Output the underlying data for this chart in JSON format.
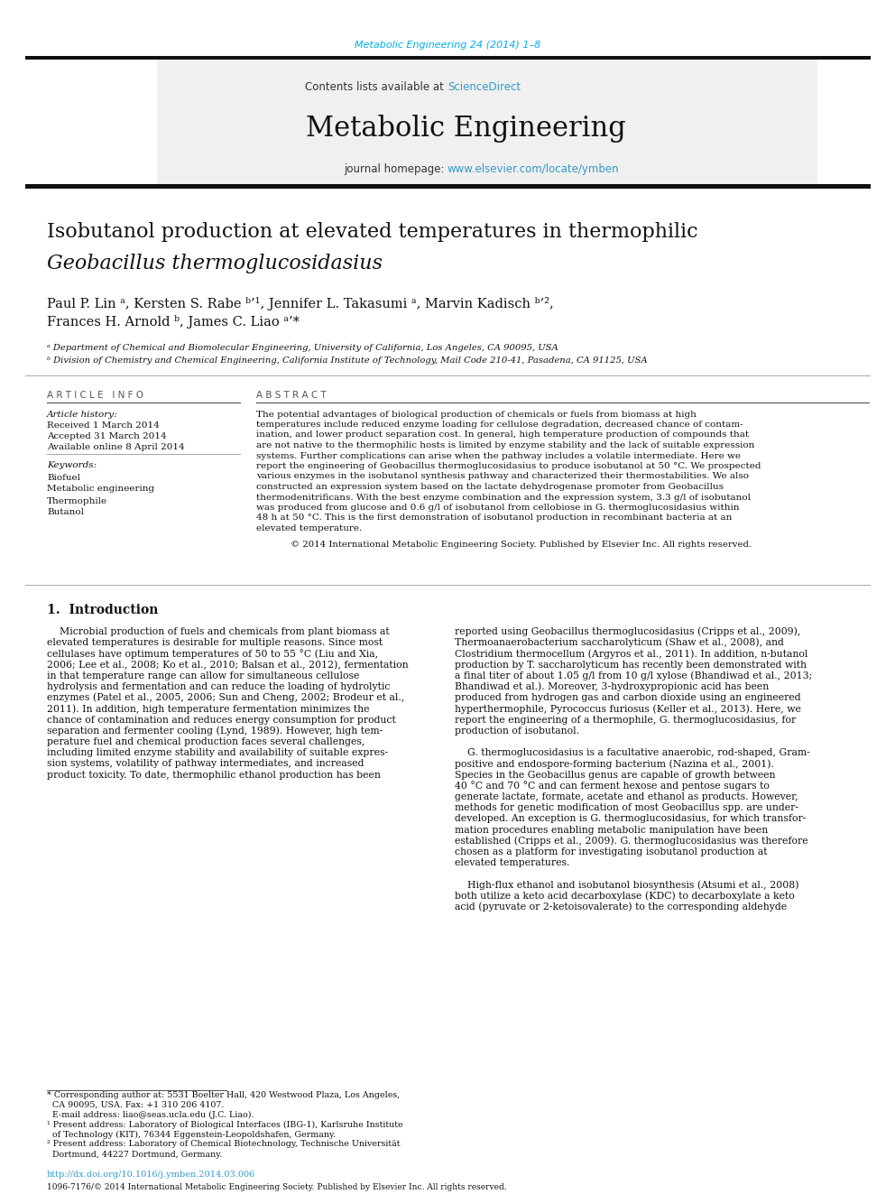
{
  "journal_ref": "Metabolic Engineering 24 (2014) 1–8",
  "journal_name": "Metabolic Engineering",
  "homepage_url": "www.elsevier.com/locate/ymben",
  "title_line1": "Isobutanol production at elevated temperatures in thermophilic",
  "title_line2": "Geobacillus thermoglucosidasius",
  "author_line1": "Paul P. Lin ᵃ, Kersten S. Rabe ᵇ’¹, Jennifer L. Takasumi ᵃ, Marvin Kadisch ᵇ’²,",
  "author_line2": "Frances H. Arnold ᵇ, James C. Liao ᵃ’*",
  "affil_a": "ᵃ Department of Chemical and Biomolecular Engineering, University of California, Los Angeles, CA 90095, USA",
  "affil_b": "ᵇ Division of Chemistry and Chemical Engineering, California Institute of Technology, Mail Code 210-41, Pasadena, CA 91125, USA",
  "keywords": [
    "Biofuel",
    "Metabolic engineering",
    "Thermophile",
    "Butanol"
  ],
  "received": "Received 1 March 2014",
  "accepted": "Accepted 31 March 2014",
  "available": "Available online 8 April 2014",
  "copyright_text": "© 2014 International Metabolic Engineering Society. Published by Elsevier Inc. All rights reserved.",
  "footer_doi": "http://dx.doi.org/10.1016/j.ymben.2014.03.006",
  "footer_issn": "1096-7176/© 2014 International Metabolic Engineering Society. Published by Elsevier Inc. All rights reserved.",
  "abs_lines": [
    "The potential advantages of biological production of chemicals or fuels from biomass at high",
    "temperatures include reduced enzyme loading for cellulose degradation, decreased chance of contam-",
    "ination, and lower product separation cost. In general, high temperature production of compounds that",
    "are not native to the thermophilic hosts is limited by enzyme stability and the lack of suitable expression",
    "systems. Further complications can arise when the pathway includes a volatile intermediate. Here we",
    "report the engineering of Geobacillus thermoglucosidasius to produce isobutanol at 50 °C. We prospected",
    "various enzymes in the isobutanol synthesis pathway and characterized their thermostabilities. We also",
    "constructed an expression system based on the lactate dehydrogenase promoter from Geobacillus",
    "thermodenitrificans. With the best enzyme combination and the expression system, 3.3 g/l of isobutanol",
    "was produced from glucose and 0.6 g/l of isobutanol from cellobiose in G. thermoglucosidasius within",
    "48 h at 50 °C. This is the first demonstration of isobutanol production in recombinant bacteria at an",
    "elevated temperature."
  ],
  "intro_left": [
    "    Microbial production of fuels and chemicals from plant biomass at",
    "elevated temperatures is desirable for multiple reasons. Since most",
    "cellulases have optimum temperatures of 50 to 55 °C (Liu and Xia,",
    "2006; Lee et al., 2008; Ko et al., 2010; Balsan et al., 2012), fermentation",
    "in that temperature range can allow for simultaneous cellulose",
    "hydrolysis and fermentation and can reduce the loading of hydrolytic",
    "enzymes (Patel et al., 2005, 2006; Sun and Cheng, 2002; Brodeur et al.,",
    "2011). In addition, high temperature fermentation minimizes the",
    "chance of contamination and reduces energy consumption for product",
    "separation and fermenter cooling (Lynd, 1989). However, high tem-",
    "perature fuel and chemical production faces several challenges,",
    "including limited enzyme stability and availability of suitable expres-",
    "sion systems, volatility of pathway intermediates, and increased",
    "product toxicity. To date, thermophilic ethanol production has been"
  ],
  "intro_right": [
    "reported using Geobacillus thermoglucosidasius (Cripps et al., 2009),",
    "Thermoanaerobacterium saccharolyticum (Shaw et al., 2008), and",
    "Clostridium thermocellum (Argyros et al., 2011). In addition, n-butanol",
    "production by T. saccharolyticum has recently been demonstrated with",
    "a final titer of about 1.05 g/l from 10 g/l xylose (Bhandiwad et al., 2013;",
    "Bhandiwad et al.). Moreover, 3-hydroxypropionic acid has been",
    "produced from hydrogen gas and carbon dioxide using an engineered",
    "hyperthermophile, Pyrococcus furiosus (Keller et al., 2013). Here, we",
    "report the engineering of a thermophile, G. thermoglucosidasius, for",
    "production of isobutanol.",
    "",
    "    G. thermoglucosidasius is a facultative anaerobic, rod-shaped, Gram-",
    "positive and endospore-forming bacterium (Nazina et al., 2001).",
    "Species in the Geobacillus genus are capable of growth between",
    "40 °C and 70 °C and can ferment hexose and pentose sugars to",
    "generate lactate, formate, acetate and ethanol as products. However,",
    "methods for genetic modification of most Geobacillus spp. are under-",
    "developed. An exception is G. thermoglucosidasius, for which transfor-",
    "mation procedures enabling metabolic manipulation have been",
    "established (Cripps et al., 2009). G. thermoglucosidasius was therefore",
    "chosen as a platform for investigating isobutanol production at",
    "elevated temperatures.",
    "",
    "    High-flux ethanol and isobutanol biosynthesis (Atsumi et al., 2008)",
    "both utilize a keto acid decarboxylase (KDC) to decarboxylate a keto",
    "acid (pyruvate or 2-ketoisovalerate) to the corresponding aldehyde"
  ],
  "fn_lines": [
    "* Corresponding author at: 5531 Boelter Hall, 420 Westwood Plaza, Los Angeles,",
    "  CA 90095, USA. Fax: +1 310 206 4107.",
    "  E-mail address: liao@seas.ucla.edu (J.C. Liao).",
    "¹ Present address: Laboratory of Biological Interfaces (IBG-1), Karlsruhe Institute",
    "  of Technology (KIT), 76344 Eggenstein-Leopoldshafen, Germany.",
    "² Present address: Laboratory of Chemical Biotechnology, Technische Universität",
    "  Dortmund, 44227 Dortmund, Germany."
  ],
  "cyan": "#00AEEF",
  "link": "#3399CC",
  "bar_dark": "#111111",
  "text_dark": "#111111"
}
